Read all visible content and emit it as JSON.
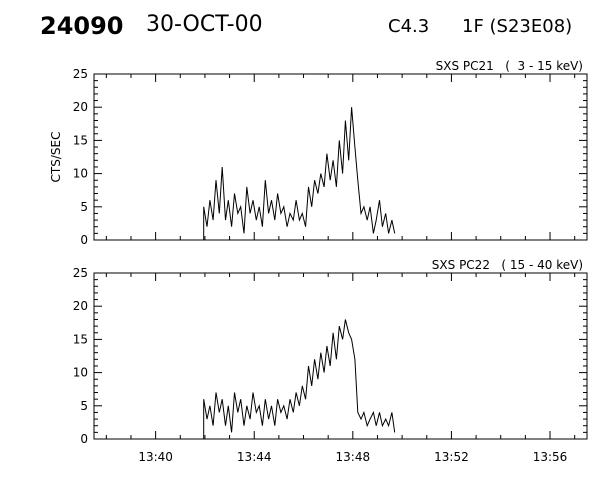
{
  "header": {
    "event_id": "24090",
    "date": "30-OCT-00",
    "goes_class": "C4.3",
    "flare_class": "1F (S23E08)"
  },
  "colors": {
    "background": "#ffffff",
    "foreground": "#000000"
  },
  "chart_data": [
    {
      "type": "line",
      "title": "SXS PC21   (  3 - 15 keV)",
      "ylabel": "CTS/SEC",
      "xlabel": "",
      "xlim": [
        "13:37:30",
        "13:57:30"
      ],
      "ylim": [
        0,
        25
      ],
      "yticks": [
        0,
        5,
        10,
        15,
        20,
        25
      ],
      "xticks": [
        "13:40",
        "13:44",
        "13:48",
        "13:52",
        "13:56"
      ],
      "show_x_tick_labels": false,
      "grid": false,
      "series": [
        {
          "x": [
            "13:41:57",
            "13:42:05",
            "13:42:12",
            "13:42:20",
            "13:42:27",
            "13:42:35",
            "13:42:42",
            "13:42:50",
            "13:42:57",
            "13:43:05",
            "13:43:12",
            "13:43:20",
            "13:43:27",
            "13:43:35",
            "13:43:42",
            "13:43:50",
            "13:43:57",
            "13:44:05",
            "13:44:12",
            "13:44:20",
            "13:44:27",
            "13:44:35",
            "13:44:42",
            "13:44:50",
            "13:44:57",
            "13:45:05",
            "13:45:12",
            "13:45:20",
            "13:45:27",
            "13:45:35",
            "13:45:42",
            "13:45:50",
            "13:45:57",
            "13:46:05",
            "13:46:12",
            "13:46:20",
            "13:46:27",
            "13:46:35",
            "13:46:42",
            "13:46:50",
            "13:46:57",
            "13:47:05",
            "13:47:12",
            "13:47:20",
            "13:47:27",
            "13:47:35",
            "13:47:42",
            "13:47:50",
            "13:47:57",
            "13:48:05",
            "13:48:12",
            "13:48:20",
            "13:48:27",
            "13:48:35",
            "13:48:42",
            "13:48:50",
            "13:48:57",
            "13:49:05",
            "13:49:12",
            "13:49:20",
            "13:49:27",
            "13:49:35",
            "13:49:42"
          ],
          "values": [
            5,
            2,
            6,
            3,
            9,
            4,
            11,
            3,
            6,
            2,
            7,
            4,
            5,
            1,
            8,
            4,
            6,
            3,
            5,
            2,
            9,
            4,
            6,
            3,
            7,
            4,
            5,
            2,
            4,
            3,
            6,
            3,
            4,
            2,
            8,
            5,
            9,
            7,
            10,
            8,
            13,
            9,
            12,
            8,
            15,
            10,
            18,
            12,
            20,
            14,
            9,
            4,
            5,
            3,
            5,
            1,
            3,
            6,
            2,
            4,
            1,
            3,
            1
          ]
        }
      ]
    },
    {
      "type": "line",
      "title": "SXS PC22   ( 15 - 40 keV)",
      "ylabel": "",
      "xlabel": "",
      "xlim": [
        "13:37:30",
        "13:57:30"
      ],
      "ylim": [
        0,
        25
      ],
      "yticks": [
        0,
        5,
        10,
        15,
        20,
        25
      ],
      "xticks": [
        "13:40",
        "13:44",
        "13:48",
        "13:52",
        "13:56"
      ],
      "show_x_tick_labels": true,
      "grid": false,
      "series": [
        {
          "x": [
            "13:41:57",
            "13:42:05",
            "13:42:12",
            "13:42:20",
            "13:42:27",
            "13:42:35",
            "13:42:42",
            "13:42:50",
            "13:42:57",
            "13:43:05",
            "13:43:12",
            "13:43:20",
            "13:43:27",
            "13:43:35",
            "13:43:42",
            "13:43:50",
            "13:43:57",
            "13:44:05",
            "13:44:12",
            "13:44:20",
            "13:44:27",
            "13:44:35",
            "13:44:42",
            "13:44:50",
            "13:44:57",
            "13:45:05",
            "13:45:12",
            "13:45:20",
            "13:45:27",
            "13:45:35",
            "13:45:42",
            "13:45:50",
            "13:45:57",
            "13:46:05",
            "13:46:12",
            "13:46:20",
            "13:46:27",
            "13:46:35",
            "13:46:42",
            "13:46:50",
            "13:46:57",
            "13:47:05",
            "13:47:12",
            "13:47:20",
            "13:47:27",
            "13:47:35",
            "13:47:42",
            "13:47:50",
            "13:47:57",
            "13:48:05",
            "13:48:12",
            "13:48:20",
            "13:48:27",
            "13:48:35",
            "13:48:42",
            "13:48:50",
            "13:48:57",
            "13:49:05",
            "13:49:12",
            "13:49:20",
            "13:49:27",
            "13:49:35",
            "13:49:42"
          ],
          "values": [
            6,
            3,
            5,
            2,
            7,
            4,
            6,
            2,
            5,
            1,
            7,
            4,
            6,
            2,
            5,
            3,
            7,
            4,
            5,
            2,
            6,
            3,
            5,
            2,
            6,
            4,
            5,
            3,
            6,
            4,
            7,
            5,
            8,
            6,
            11,
            8,
            12,
            9,
            13,
            10,
            14,
            11,
            16,
            12,
            17,
            15,
            18,
            16,
            15,
            12,
            4,
            3,
            4,
            2,
            3,
            4,
            2,
            4,
            2,
            3,
            2,
            4,
            1
          ]
        }
      ]
    }
  ]
}
